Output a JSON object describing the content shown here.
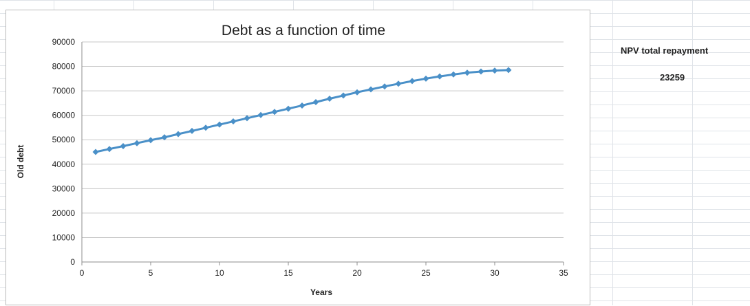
{
  "spreadsheet": {
    "npv_label": "NPV total repayment",
    "npv_value": "23259"
  },
  "chart_data": {
    "type": "line",
    "title": "Debt as a function of time",
    "xlabel": "Years",
    "ylabel": "Old debt",
    "xlim": [
      0,
      35
    ],
    "ylim": [
      0,
      90000
    ],
    "xticks": [
      0,
      5,
      10,
      15,
      20,
      25,
      30,
      35
    ],
    "yticks": [
      0,
      10000,
      20000,
      30000,
      40000,
      50000,
      60000,
      70000,
      80000,
      90000
    ],
    "grid": true,
    "legend": "none",
    "series": [
      {
        "color": "#4a90c8",
        "marker": "diamond",
        "x": [
          1,
          2,
          3,
          4,
          5,
          6,
          7,
          8,
          9,
          10,
          11,
          12,
          13,
          14,
          15,
          16,
          17,
          18,
          19,
          20,
          21,
          22,
          23,
          24,
          25,
          26,
          27,
          28,
          29,
          30,
          31
        ],
        "y": [
          45000,
          46200,
          47400,
          48600,
          49800,
          51000,
          52300,
          53600,
          54900,
          56200,
          57500,
          58800,
          60100,
          61400,
          62700,
          64000,
          65400,
          66800,
          68100,
          69400,
          70600,
          71800,
          72900,
          74000,
          75000,
          75900,
          76700,
          77400,
          77900,
          78300,
          78500
        ]
      }
    ]
  }
}
